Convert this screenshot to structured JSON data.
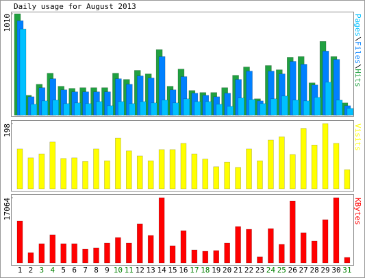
{
  "chart_data": [
    {
      "type": "bar",
      "title": "Daily usage for August 2013",
      "ylim": [
        0,
        1010
      ],
      "yticks": [
        1010
      ],
      "series": [
        {
          "name": "Hits",
          "color": "#20a040",
          "values": [
            1010,
            199,
            309,
            419,
            289,
            268,
            275,
            275,
            275,
            419,
            357,
            447,
            412,
            653,
            289,
            460,
            247,
            227,
            227,
            275,
            398,
            481,
            165,
            495,
            453,
            577,
            584,
            323,
            735,
            584,
            124
          ]
        },
        {
          "name": "Files",
          "color": "#0080ff",
          "values": [
            941,
            185,
            275,
            364,
            254,
            234,
            234,
            234,
            234,
            364,
            309,
            392,
            371,
            584,
            254,
            385,
            220,
            199,
            185,
            220,
            357,
            440,
            144,
            440,
            412,
            536,
            508,
            302,
            639,
            556,
            96
          ]
        },
        {
          "name": "Pages",
          "color": "#00c0ff",
          "values": [
            859,
            110,
            144,
            151,
            117,
            124,
            117,
            137,
            96,
            137,
            117,
            137,
            124,
            151,
            124,
            165,
            137,
            137,
            110,
            89,
            172,
            158,
            117,
            165,
            192,
            151,
            144,
            179,
            330,
            151,
            69
          ]
        }
      ]
    },
    {
      "type": "bar",
      "ylim": [
        0,
        198
      ],
      "yticks": [
        198
      ],
      "series": [
        {
          "name": "Visits",
          "color": "#ffff00",
          "values": [
            121,
            94,
            106,
            142,
            92,
            94,
            83,
            121,
            85,
            154,
            115,
            100,
            85,
            119,
            119,
            138,
            106,
            90,
            67,
            81,
            65,
            121,
            85,
            148,
            158,
            104,
            183,
            133,
            198,
            138,
            58
          ]
        }
      ]
    },
    {
      "type": "bar",
      "ylim": [
        0,
        17064
      ],
      "yticks": [
        17064
      ],
      "categories": [
        "1",
        "2",
        "3",
        "4",
        "5",
        "6",
        "7",
        "8",
        "9",
        "10",
        "11",
        "12",
        "13",
        "14",
        "15",
        "16",
        "17",
        "18",
        "19",
        "20",
        "21",
        "22",
        "23",
        "24",
        "25",
        "26",
        "27",
        "28",
        "29",
        "30",
        "31"
      ],
      "category_colors": [
        "#000",
        "#000",
        "#008000",
        "#008000",
        "#000",
        "#000",
        "#000",
        "#000",
        "#000",
        "#008000",
        "#008000",
        "#000",
        "#000",
        "#000",
        "#000",
        "#000",
        "#008000",
        "#008000",
        "#000",
        "#000",
        "#000",
        "#000",
        "#000",
        "#008000",
        "#008000",
        "#000",
        "#000",
        "#000",
        "#000",
        "#000",
        "#008000"
      ],
      "series": [
        {
          "name": "KBytes",
          "color": "#ff0000",
          "values": [
            10958,
            2694,
            5030,
            7365,
            5030,
            5030,
            3593,
            3952,
            5209,
            6646,
            5209,
            10239,
            7185,
            17064,
            4491,
            8443,
            3413,
            3054,
            3233,
            5209,
            9521,
            8802,
            1617,
            8982,
            4850,
            16167,
            7904,
            5748,
            11317,
            17064,
            1437
          ]
        }
      ]
    }
  ]
}
